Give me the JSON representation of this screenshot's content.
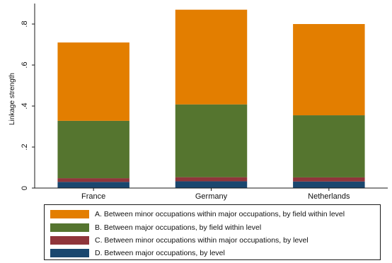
{
  "chart_data": {
    "type": "bar",
    "stacked": true,
    "categories": [
      "France",
      "Germany",
      "Netherlands"
    ],
    "ylabel": "Linkage strength",
    "xlabel": "",
    "ylim": [
      0,
      0.9
    ],
    "yticks": [
      0,
      0.2,
      0.4,
      0.6,
      0.8
    ],
    "ytick_labels": [
      "0",
      ".2",
      ".4",
      ".6",
      ".8"
    ],
    "grid": false,
    "legend_position": "bottom",
    "series": [
      {
        "name": "D. Between major occupations, by level",
        "color": "#1a476f",
        "values": [
          0.03,
          0.033,
          0.032
        ]
      },
      {
        "name": "C. Between minor occupations within major occupations, by level",
        "color": "#90353b",
        "values": [
          0.018,
          0.02,
          0.02
        ]
      },
      {
        "name": "B. Between major occupations, by field within level",
        "color": "#55752f",
        "values": [
          0.28,
          0.355,
          0.303
        ]
      },
      {
        "name": "A. Between minor occupations within major occupations, by field within level",
        "color": "#e37e00",
        "values": [
          0.382,
          0.462,
          0.445
        ]
      }
    ]
  },
  "legend": {
    "items": [
      {
        "label": "A. Between minor occupations within major occupations, by field within level",
        "color": "#e37e00"
      },
      {
        "label": "B. Between major occupations, by field within level",
        "color": "#55752f"
      },
      {
        "label": "C. Between minor occupations within major occupations, by level",
        "color": "#90353b"
      },
      {
        "label": "D. Between major occupations, by level",
        "color": "#1a476f"
      }
    ]
  }
}
